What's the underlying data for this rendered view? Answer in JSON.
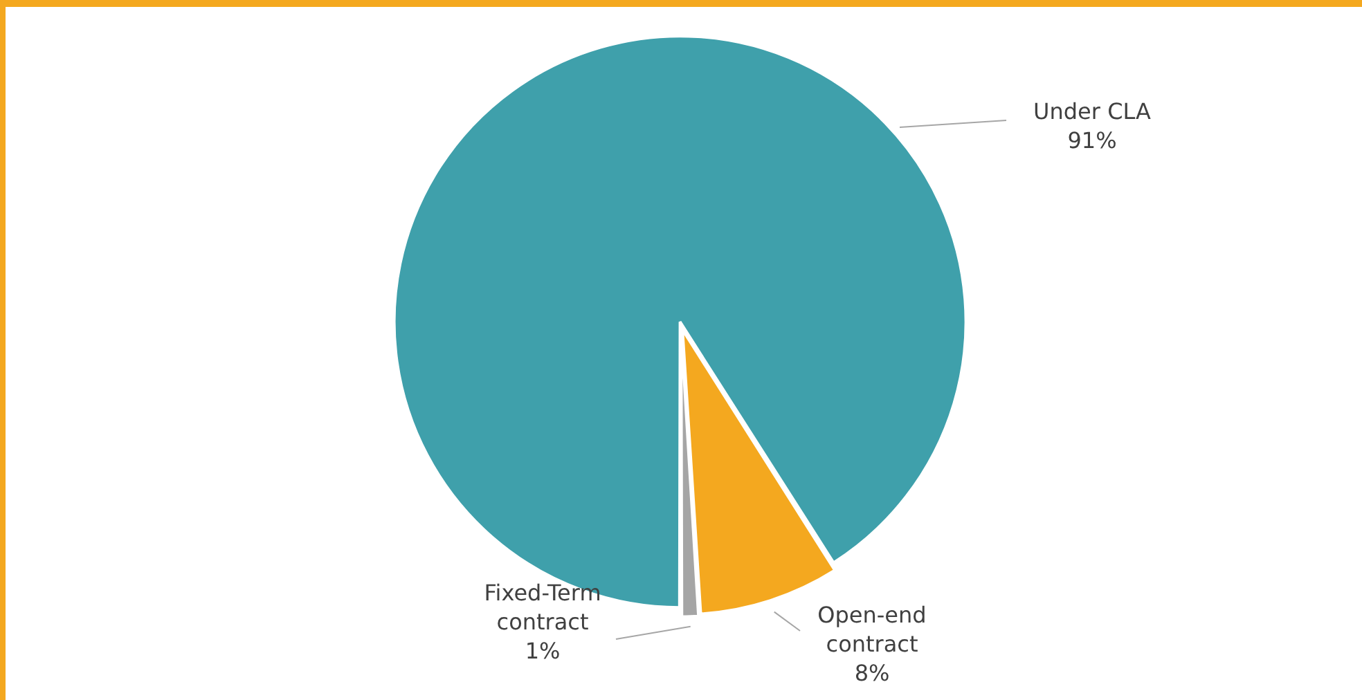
{
  "chart_data": {
    "type": "pie",
    "categories": [
      "Under CLA",
      "Open-end contract",
      "Fixed-Term contract"
    ],
    "values": [
      91,
      8,
      1
    ],
    "colors": [
      "#3fa0ab",
      "#f4a81f",
      "#a5a5a5"
    ],
    "value_labels": [
      "91%",
      "8%",
      "1%"
    ],
    "legend": false
  }
}
